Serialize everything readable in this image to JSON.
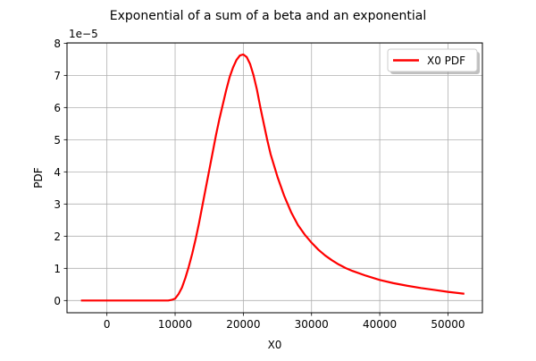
{
  "chart_data": {
    "type": "line",
    "title": "Exponential of a sum of a beta and an exponential",
    "xlabel": "X0",
    "ylabel": "PDF",
    "y_offset_text": "1e−5",
    "xlim": [
      -5850,
      55050
    ],
    "ylim": [
      -3.8e-06,
      8.01e-05
    ],
    "x_ticks": [
      0,
      10000,
      20000,
      30000,
      40000,
      50000
    ],
    "x_tick_labels": [
      "0",
      "10000",
      "20000",
      "30000",
      "40000",
      "50000"
    ],
    "y_ticks": [
      0,
      1e-05,
      2e-05,
      3e-05,
      4e-05,
      5e-05,
      6e-05,
      7e-05,
      8e-05
    ],
    "y_tick_labels": [
      "0",
      "1",
      "2",
      "3",
      "4",
      "5",
      "6",
      "7",
      "8"
    ],
    "grid": true,
    "legend": {
      "position": "top-right",
      "shadow": true
    },
    "series": [
      {
        "name": "X0 PDF",
        "color": "#ff0000",
        "x": [
          -3800,
          0,
          5000,
          9000,
          9500,
          10000,
          10500,
          11000,
          11500,
          12000,
          12500,
          13000,
          13500,
          14000,
          14500,
          15000,
          15500,
          16000,
          16500,
          17000,
          17500,
          18000,
          18500,
          19000,
          19500,
          20000,
          20500,
          21000,
          21500,
          22000,
          22500,
          23000,
          23500,
          24000,
          25000,
          26000,
          27000,
          28000,
          29000,
          30000,
          31000,
          32000,
          33000,
          34000,
          35000,
          36000,
          38000,
          40000,
          42000,
          44000,
          46000,
          48000,
          50000,
          52400
        ],
        "y": [
          0.0,
          0.0,
          0.0,
          0.0,
          2e-07,
          6e-07,
          2e-06,
          4e-06,
          7e-06,
          1.05e-05,
          1.45e-05,
          1.9e-05,
          2.4e-05,
          2.95e-05,
          3.5e-05,
          4.05e-05,
          4.6e-05,
          5.15e-05,
          5.65e-05,
          6.1e-05,
          6.55e-05,
          6.95e-05,
          7.25e-05,
          7.48e-05,
          7.62e-05,
          7.65e-05,
          7.57e-05,
          7.35e-05,
          7e-05,
          6.55e-05,
          6e-05,
          5.5e-05,
          5e-05,
          4.55e-05,
          3.85e-05,
          3.25e-05,
          2.75e-05,
          2.35e-05,
          2.05e-05,
          1.8e-05,
          1.58e-05,
          1.4e-05,
          1.25e-05,
          1.12e-05,
          1.01e-05,
          9.2e-06,
          7.7e-06,
          6.4e-06,
          5.4e-06,
          4.6e-06,
          3.9e-06,
          3.3e-06,
          2.7e-06,
          2.1e-06
        ]
      }
    ]
  }
}
